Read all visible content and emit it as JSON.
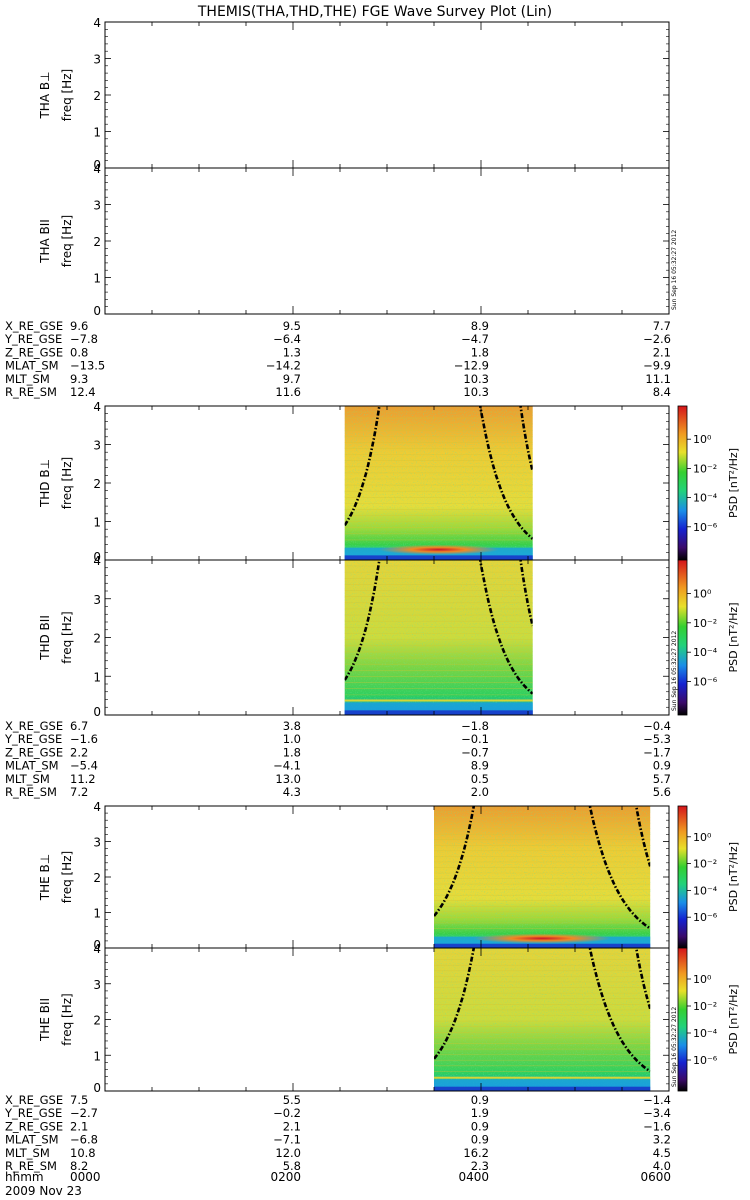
{
  "title": "THEMIS(THA,THD,THE) FGE Wave Survey Plot (Lin)",
  "stamp": "Sun Sep 16 05:32:27 2012",
  "colors": {
    "spectrum_low": "#1a2bd6",
    "spectrum_mid": "#2fd24a",
    "spectrum_high": "#e8d82a",
    "spectrum_peak": "#d4342a",
    "gyro_line": "#000000"
  },
  "chart_data": {
    "type": "heatmap",
    "x_axis": {
      "label": "hhmm",
      "ticks": [
        "0000",
        "0200",
        "0400",
        "0600"
      ],
      "date": "2009 Nov 23"
    },
    "y_axis": {
      "unit": "freq [Hz]",
      "ylim": [
        0,
        4
      ],
      "ticks": [
        "0",
        "1",
        "2",
        "3",
        "4"
      ]
    },
    "colorbar": {
      "label": "PSD [nT²/Hz]",
      "scale": "log",
      "ticks": [
        "10⁰",
        "10⁻²",
        "10⁻⁴",
        "10⁻⁶"
      ]
    },
    "probes": [
      {
        "id": "tha",
        "panels": [
          {
            "label": "THA B⊥",
            "has_data": false
          },
          {
            "label": "THA BII",
            "has_data": false
          }
        ],
        "ephemeris": [
          {
            "name": "X_RE_GSE",
            "values": [
              "9.6",
              "9.5",
              "8.9",
              "7.7"
            ]
          },
          {
            "name": "Y_RE_GSE",
            "values": [
              "−7.8",
              "−6.4",
              "−4.7",
              "−2.6"
            ]
          },
          {
            "name": "Z_RE_GSE",
            "values": [
              "0.8",
              "1.3",
              "1.8",
              "2.1"
            ]
          },
          {
            "name": "MLAT_SM",
            "values": [
              "−13.5",
              "−14.2",
              "−12.9",
              "−9.9"
            ]
          },
          {
            "name": "MLT_SM",
            "values": [
              "9.3",
              "9.7",
              "10.3",
              "11.1"
            ]
          },
          {
            "name": "R_RE_SM",
            "values": [
              "12.4",
              "11.6",
              "10.3",
              "8.4"
            ]
          }
        ]
      },
      {
        "id": "thd",
        "panels": [
          {
            "label": "THD B⊥",
            "has_data": true
          },
          {
            "label": "THD BII",
            "has_data": true
          }
        ],
        "data_span_hours": [
          2.55,
          4.55
        ],
        "ephemeris": [
          {
            "name": "X_RE_GSE",
            "values": [
              "6.7",
              "3.8",
              "−1.8",
              "−0.4"
            ]
          },
          {
            "name": "Y_RE_GSE",
            "values": [
              "−1.6",
              "1.0",
              "−0.1",
              "−5.3"
            ]
          },
          {
            "name": "Z_RE_GSE",
            "values": [
              "2.2",
              "1.8",
              "−0.7",
              "−1.7"
            ]
          },
          {
            "name": "MLAT_SM",
            "values": [
              "−5.4",
              "−4.1",
              "8.9",
              "0.9"
            ]
          },
          {
            "name": "MLT_SM",
            "values": [
              "11.2",
              "13.0",
              "0.5",
              "5.7"
            ]
          },
          {
            "name": "R_RE_SM",
            "values": [
              "7.2",
              "4.3",
              "2.0",
              "5.6"
            ]
          }
        ]
      },
      {
        "id": "the",
        "panels": [
          {
            "label": "THE B⊥",
            "has_data": true
          },
          {
            "label": "THE BII",
            "has_data": true
          }
        ],
        "data_span_hours": [
          3.5,
          5.8
        ],
        "ephemeris": [
          {
            "name": "X_RE_GSE",
            "values": [
              "7.5",
              "5.5",
              "0.9",
              "−1.4"
            ]
          },
          {
            "name": "Y_RE_GSE",
            "values": [
              "−2.7",
              "−0.2",
              "1.9",
              "−3.4"
            ]
          },
          {
            "name": "Z_RE_GSE",
            "values": [
              "2.1",
              "2.1",
              "0.9",
              "−1.6"
            ]
          },
          {
            "name": "MLAT_SM",
            "values": [
              "−6.8",
              "−7.1",
              "0.9",
              "3.2"
            ]
          },
          {
            "name": "MLT_SM",
            "values": [
              "10.8",
              "12.0",
              "16.2",
              "4.5"
            ]
          },
          {
            "name": "R_RE_SM",
            "values": [
              "8.2",
              "5.8",
              "2.3",
              "4.0"
            ]
          }
        ]
      }
    ]
  }
}
